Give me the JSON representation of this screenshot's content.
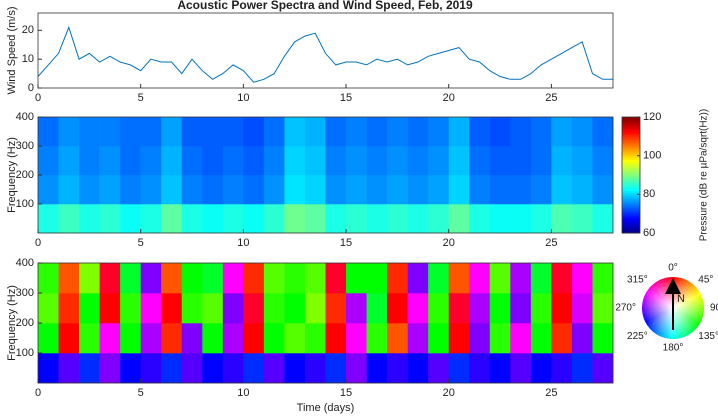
{
  "chart_data": [
    {
      "type": "line",
      "title": "Acoustic Power Spectra and Wind Speed, Feb, 2019",
      "ylabel": "Wind Speed (m/s)",
      "color": "#0072bd",
      "x": [
        0,
        0.5,
        1,
        1.5,
        2,
        2.5,
        3,
        3.5,
        4,
        4.5,
        5,
        5.5,
        6,
        6.5,
        7,
        7.5,
        8,
        8.5,
        9,
        9.5,
        10,
        10.5,
        11,
        11.5,
        12,
        12.5,
        13,
        13.5,
        14,
        14.5,
        15,
        15.5,
        16,
        16.5,
        17,
        17.5,
        18,
        18.5,
        19,
        19.5,
        20,
        20.5,
        21,
        21.5,
        22,
        22.5,
        23,
        23.5,
        24,
        24.5,
        25,
        25.5,
        26,
        26.5,
        27,
        27.5,
        28
      ],
      "values": [
        4,
        8,
        12,
        21,
        10,
        12,
        9,
        11,
        9,
        8,
        6,
        10,
        9,
        9,
        5,
        10,
        6,
        3,
        5,
        8,
        6,
        2,
        3,
        5,
        11,
        16,
        18,
        19,
        12,
        8,
        9,
        9,
        8,
        10,
        9,
        10,
        8,
        9,
        11,
        12,
        13,
        14,
        10,
        9,
        6,
        4,
        3,
        3,
        5,
        8,
        10,
        12,
        14,
        16,
        5,
        3,
        3
      ],
      "xlim": [
        0,
        28
      ],
      "xticks": [
        0,
        5,
        10,
        15,
        20,
        25
      ],
      "ylim": [
        0,
        26
      ],
      "yticks": [
        0,
        10,
        20
      ]
    },
    {
      "type": "heatmap",
      "ylabel": "Frequency (Hz)",
      "colormap": "jet",
      "clim": [
        60,
        120
      ],
      "cticks": [
        60,
        80,
        100,
        120
      ],
      "colorbar_label": "Pressure (dB re µPa/sqrt(Hz))",
      "xbins": [
        0,
        1,
        2,
        3,
        4,
        5,
        6,
        7,
        8,
        9,
        10,
        11,
        12,
        13,
        14,
        15,
        16,
        17,
        18,
        19,
        20,
        21,
        22,
        23,
        24,
        25,
        26,
        27,
        28
      ],
      "ybins": [
        0,
        100,
        200,
        300,
        400
      ],
      "z": [
        [
          84,
          76,
          75,
          74
        ],
        [
          86,
          78,
          77,
          76
        ],
        [
          84,
          76,
          75,
          75
        ],
        [
          85,
          77,
          76,
          75
        ],
        [
          83,
          75,
          74,
          74
        ],
        [
          84,
          76,
          75,
          74
        ],
        [
          88,
          79,
          78,
          77
        ],
        [
          84,
          75,
          74,
          73
        ],
        [
          83,
          74,
          73,
          73
        ],
        [
          84,
          75,
          74,
          73
        ],
        [
          83,
          74,
          73,
          72
        ],
        [
          85,
          76,
          75,
          74
        ],
        [
          89,
          81,
          80,
          79
        ],
        [
          88,
          80,
          79,
          78
        ],
        [
          84,
          76,
          75,
          74
        ],
        [
          85,
          77,
          76,
          75
        ],
        [
          84,
          76,
          75,
          74
        ],
        [
          85,
          77,
          76,
          75
        ],
        [
          84,
          76,
          75,
          74
        ],
        [
          85,
          77,
          76,
          75
        ],
        [
          88,
          80,
          79,
          78
        ],
        [
          84,
          75,
          74,
          73
        ],
        [
          83,
          74,
          73,
          72
        ],
        [
          83,
          74,
          73,
          73
        ],
        [
          84,
          75,
          74,
          74
        ],
        [
          87,
          79,
          78,
          77
        ],
        [
          86,
          78,
          77,
          76
        ],
        [
          84,
          76,
          75,
          74
        ]
      ],
      "xlim": [
        0,
        28
      ],
      "xticks": [
        0,
        5,
        10,
        15,
        20,
        25
      ],
      "ylim": [
        0,
        400
      ],
      "yticks": [
        100,
        200,
        300,
        400
      ]
    },
    {
      "type": "heatmap",
      "ylabel": "Frequency (Hz)",
      "xlabel": "Time (days)",
      "colormap": "hue",
      "xbins": [
        0,
        1,
        2,
        3,
        4,
        5,
        6,
        7,
        8,
        9,
        10,
        11,
        12,
        13,
        14,
        15,
        16,
        17,
        18,
        19,
        20,
        21,
        22,
        23,
        24,
        25,
        26,
        27,
        28
      ],
      "ybins": [
        0,
        100,
        200,
        300,
        400
      ],
      "z": [
        [
          240,
          120,
          100,
          110
        ],
        [
          260,
          0,
          10,
          20
        ],
        [
          230,
          110,
          120,
          90
        ],
        [
          270,
          300,
          0,
          350
        ],
        [
          240,
          120,
          110,
          130
        ],
        [
          250,
          280,
          300,
          270
        ],
        [
          230,
          10,
          0,
          20
        ],
        [
          260,
          270,
          110,
          120
        ],
        [
          240,
          120,
          100,
          130
        ],
        [
          250,
          280,
          270,
          300
        ],
        [
          230,
          0,
          350,
          10
        ],
        [
          260,
          120,
          110,
          100
        ],
        [
          240,
          100,
          120,
          110
        ],
        [
          250,
          110,
          90,
          100
        ],
        [
          230,
          0,
          10,
          350
        ],
        [
          270,
          300,
          280,
          120
        ],
        [
          240,
          110,
          130,
          120
        ],
        [
          250,
          20,
          0,
          10
        ],
        [
          240,
          280,
          300,
          270
        ],
        [
          260,
          120,
          110,
          130
        ],
        [
          230,
          0,
          350,
          20
        ],
        [
          250,
          270,
          280,
          300
        ],
        [
          240,
          110,
          120,
          100
        ],
        [
          260,
          300,
          270,
          280
        ],
        [
          240,
          120,
          110,
          130
        ],
        [
          250,
          10,
          0,
          350
        ],
        [
          230,
          270,
          290,
          300
        ],
        [
          260,
          120,
          100,
          110
        ]
      ],
      "direction_labels": [
        {
          "value": 0,
          "label": "0°"
        },
        {
          "value": 45,
          "label": "45°"
        },
        {
          "value": 90,
          "label": "90°"
        },
        {
          "value": 135,
          "label": "135°"
        },
        {
          "value": 180,
          "label": "180°"
        },
        {
          "value": 225,
          "label": "225°"
        },
        {
          "value": 270,
          "label": "270°"
        },
        {
          "value": 315,
          "label": "315°"
        }
      ],
      "compass_label": "N",
      "xlim": [
        0,
        28
      ],
      "xticks": [
        0,
        5,
        10,
        15,
        20,
        25
      ],
      "ylim": [
        0,
        400
      ],
      "yticks": [
        100,
        200,
        300,
        400
      ]
    }
  ]
}
